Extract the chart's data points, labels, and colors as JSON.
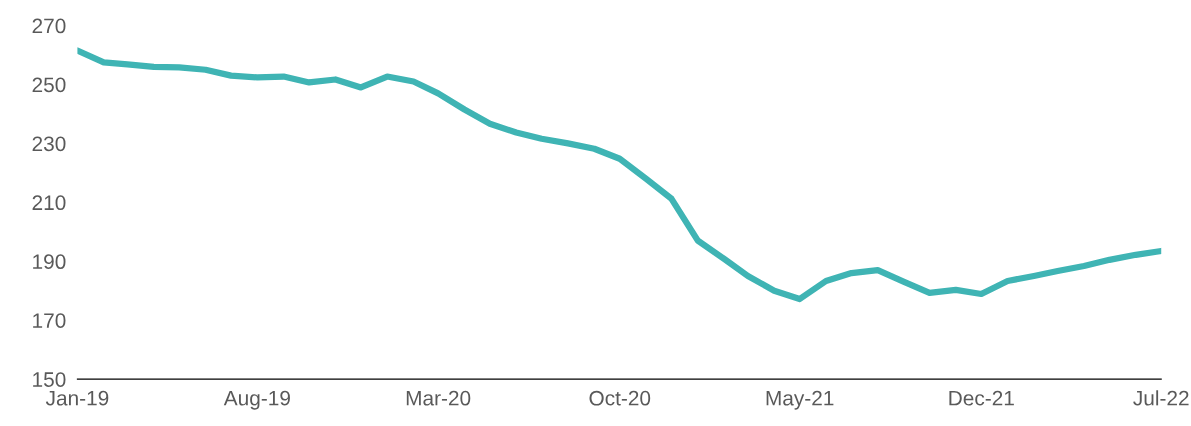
{
  "chart_data": {
    "type": "line",
    "x": [
      "2019-01",
      "2019-02",
      "2019-03",
      "2019-04",
      "2019-05",
      "2019-06",
      "2019-07",
      "2019-08",
      "2019-09",
      "2019-10",
      "2019-11",
      "2019-12",
      "2020-01",
      "2020-02",
      "2020-03",
      "2020-04",
      "2020-05",
      "2020-06",
      "2020-07",
      "2020-08",
      "2020-09",
      "2020-10",
      "2020-11",
      "2020-12",
      "2021-01",
      "2021-02",
      "2021-03",
      "2021-04",
      "2021-05",
      "2021-06",
      "2021-07",
      "2021-08",
      "2021-09",
      "2021-10",
      "2021-11",
      "2021-12",
      "2022-01",
      "2022-02",
      "2022-03",
      "2022-04",
      "2022-05",
      "2022-06",
      "2022-07"
    ],
    "series": [
      {
        "color": "#3fb4b4",
        "values": [
          261.5,
          257.5,
          256.8,
          256,
          255.8,
          255,
          253,
          252.4,
          252.7,
          250.7,
          251.7,
          249,
          252.7,
          251,
          247,
          241.5,
          236.7,
          233.7,
          231.6,
          230,
          228.2,
          224.8,
          218,
          211.2,
          197,
          190.8,
          185,
          180,
          177.2,
          183.3,
          186,
          187,
          183,
          179.3,
          180.3,
          178.9,
          183.3,
          185,
          186.7,
          188.4,
          190.5,
          192.2,
          193.5
        ]
      }
    ],
    "xlim": [
      "2019-01",
      "2022-07"
    ],
    "xticks": [
      {
        "value": "2019-01",
        "label": "Jan-19"
      },
      {
        "value": "2019-08",
        "label": "Aug-19"
      },
      {
        "value": "2020-03",
        "label": "Mar-20"
      },
      {
        "value": "2020-10",
        "label": "Oct-20"
      },
      {
        "value": "2021-05",
        "label": "May-21"
      },
      {
        "value": "2021-12",
        "label": "Dec-21"
      },
      {
        "value": "2022-07",
        "label": "Jul-22"
      }
    ],
    "ylim": [
      150,
      270
    ],
    "yticks": [
      150,
      170,
      190,
      210,
      230,
      250,
      270
    ],
    "grid": false,
    "marker": "none",
    "line_style": "solid"
  }
}
